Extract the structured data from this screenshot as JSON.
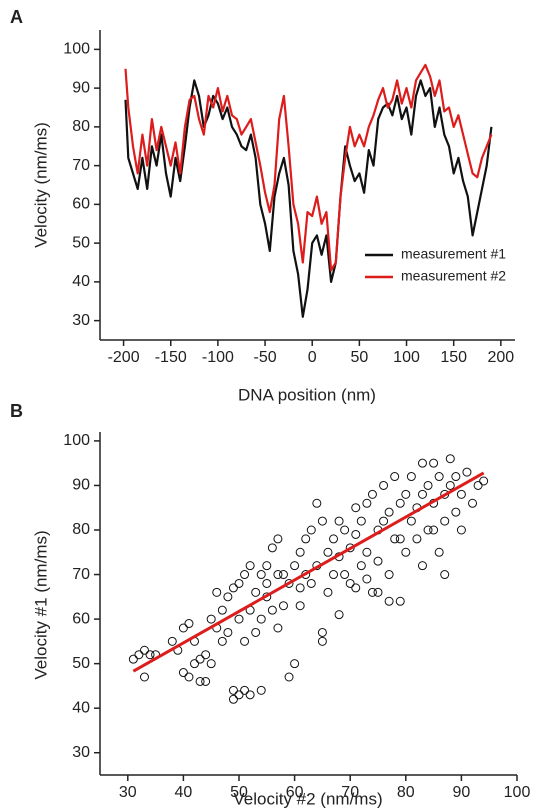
{
  "chart_data": [
    {
      "type": "line",
      "panel_label": "A",
      "xlabel": "DNA position (nm)",
      "ylabel": "Velocity (nm/ms)",
      "xlim": [
        -225,
        215
      ],
      "ylim": [
        25,
        105
      ],
      "xticks": [
        -200,
        -150,
        -100,
        -50,
        0,
        50,
        100,
        150,
        200
      ],
      "yticks": [
        30,
        40,
        50,
        60,
        70,
        80,
        90,
        100
      ],
      "legend": "lower right",
      "x": [
        -198,
        -195,
        -190,
        -185,
        -180,
        -175,
        -170,
        -165,
        -160,
        -155,
        -150,
        -145,
        -140,
        -135,
        -130,
        -125,
        -120,
        -115,
        -110,
        -105,
        -100,
        -95,
        -90,
        -85,
        -80,
        -75,
        -70,
        -65,
        -60,
        -55,
        -50,
        -45,
        -40,
        -35,
        -30,
        -25,
        -20,
        -15,
        -10,
        -5,
        0,
        5,
        10,
        15,
        20,
        25,
        30,
        35,
        40,
        45,
        50,
        55,
        60,
        65,
        70,
        75,
        80,
        85,
        90,
        95,
        100,
        105,
        110,
        115,
        120,
        125,
        130,
        135,
        140,
        145,
        150,
        155,
        160,
        165,
        170,
        175,
        180,
        185,
        190
      ],
      "series": [
        {
          "name": "measurement #1",
          "color": "#111111",
          "values": [
            87,
            72,
            68,
            64,
            72,
            64,
            75,
            70,
            78,
            68,
            62,
            72,
            66,
            75,
            85,
            92,
            88,
            80,
            83,
            88,
            86,
            82,
            85,
            80,
            78,
            75,
            74,
            78,
            72,
            60,
            55,
            48,
            62,
            68,
            72,
            65,
            48,
            42,
            31,
            38,
            50,
            52,
            47,
            52,
            40,
            45,
            62,
            75,
            70,
            66,
            68,
            63,
            74,
            70,
            82,
            85,
            86,
            83,
            88,
            82,
            85,
            78,
            88,
            92,
            88,
            90,
            80,
            85,
            78,
            75,
            68,
            72,
            66,
            62,
            52,
            58,
            64,
            70,
            80
          ]
        },
        {
          "name": "measurement #2",
          "color": "#dd1c1c",
          "values": [
            95,
            85,
            75,
            68,
            78,
            70,
            82,
            74,
            80,
            75,
            70,
            76,
            68,
            80,
            87,
            88,
            82,
            78,
            88,
            85,
            90,
            84,
            88,
            83,
            82,
            78,
            80,
            82,
            76,
            70,
            63,
            58,
            65,
            82,
            88,
            75,
            60,
            55,
            45,
            58,
            57,
            62,
            55,
            58,
            43,
            45,
            62,
            72,
            80,
            75,
            78,
            75,
            80,
            83,
            87,
            90,
            85,
            87,
            92,
            86,
            90,
            85,
            92,
            94,
            96,
            93,
            88,
            92,
            84,
            85,
            80,
            83,
            78,
            73,
            68,
            67,
            72,
            75,
            78
          ]
        }
      ]
    },
    {
      "type": "scatter",
      "panel_label": "B",
      "xlabel": "Velocity #2 (nm/ms)",
      "ylabel": "Velocity #1 (nm/ms)",
      "xlim": [
        25,
        100
      ],
      "ylim": [
        25,
        102
      ],
      "xticks": [
        30,
        40,
        50,
        60,
        70,
        80,
        90,
        100
      ],
      "yticks": [
        30,
        40,
        50,
        60,
        70,
        80,
        90,
        100
      ],
      "series": [
        {
          "color": "#111111",
          "x": [
            31,
            32,
            33,
            33,
            34,
            35,
            38,
            39,
            40,
            41,
            40,
            41,
            42,
            42,
            43,
            43,
            44,
            44,
            45,
            45,
            46,
            46,
            47,
            47,
            48,
            48,
            49,
            49,
            49,
            50,
            50,
            50,
            51,
            51,
            51,
            52,
            52,
            52,
            53,
            53,
            54,
            54,
            54,
            55,
            55,
            56,
            56,
            57,
            57,
            58,
            58,
            59,
            59,
            60,
            60,
            61,
            61,
            62,
            62,
            63,
            63,
            64,
            64,
            65,
            65,
            65,
            66,
            66,
            67,
            67,
            68,
            68,
            68,
            69,
            70,
            70,
            71,
            71,
            72,
            72,
            73,
            73,
            74,
            74,
            75,
            75,
            76,
            76,
            77,
            77,
            78,
            78,
            79,
            79,
            80,
            80,
            81,
            81,
            82,
            82,
            83,
            83,
            84,
            84,
            85,
            85,
            86,
            86,
            87,
            87,
            88,
            88,
            89,
            89,
            90,
            90,
            91,
            92,
            93,
            94,
            69,
            71,
            73,
            75,
            77,
            79,
            83,
            85,
            87,
            61,
            57,
            55
          ],
          "values": [
            51,
            52,
            53,
            47,
            52,
            52,
            55,
            53,
            58,
            59,
            48,
            47,
            50,
            55,
            51,
            46,
            52,
            46,
            60,
            50,
            66,
            58,
            55,
            62,
            65,
            57,
            67,
            44,
            42,
            43,
            68,
            60,
            44,
            70,
            55,
            43,
            72,
            62,
            66,
            57,
            70,
            44,
            60,
            72,
            65,
            76,
            62,
            78,
            58,
            70,
            63,
            68,
            47,
            50,
            72,
            75,
            67,
            78,
            70,
            80,
            68,
            86,
            72,
            82,
            55,
            57,
            75,
            66,
            78,
            70,
            82,
            74,
            61,
            80,
            76,
            68,
            85,
            79,
            82,
            72,
            86,
            75,
            88,
            66,
            80,
            73,
            90,
            82,
            84,
            70,
            92,
            78,
            86,
            64,
            88,
            75,
            92,
            82,
            85,
            78,
            95,
            88,
            90,
            80,
            95,
            86,
            92,
            75,
            88,
            82,
            96,
            90,
            84,
            92,
            88,
            80,
            93,
            86,
            90,
            91,
            70,
            67,
            69,
            66,
            64,
            78,
            72,
            80,
            70,
            63,
            70,
            68
          ]
        }
      ],
      "fit_line": {
        "color": "#dd1c1c",
        "x": [
          31,
          94
        ],
        "y": [
          48.3,
          92.8
        ]
      }
    }
  ]
}
